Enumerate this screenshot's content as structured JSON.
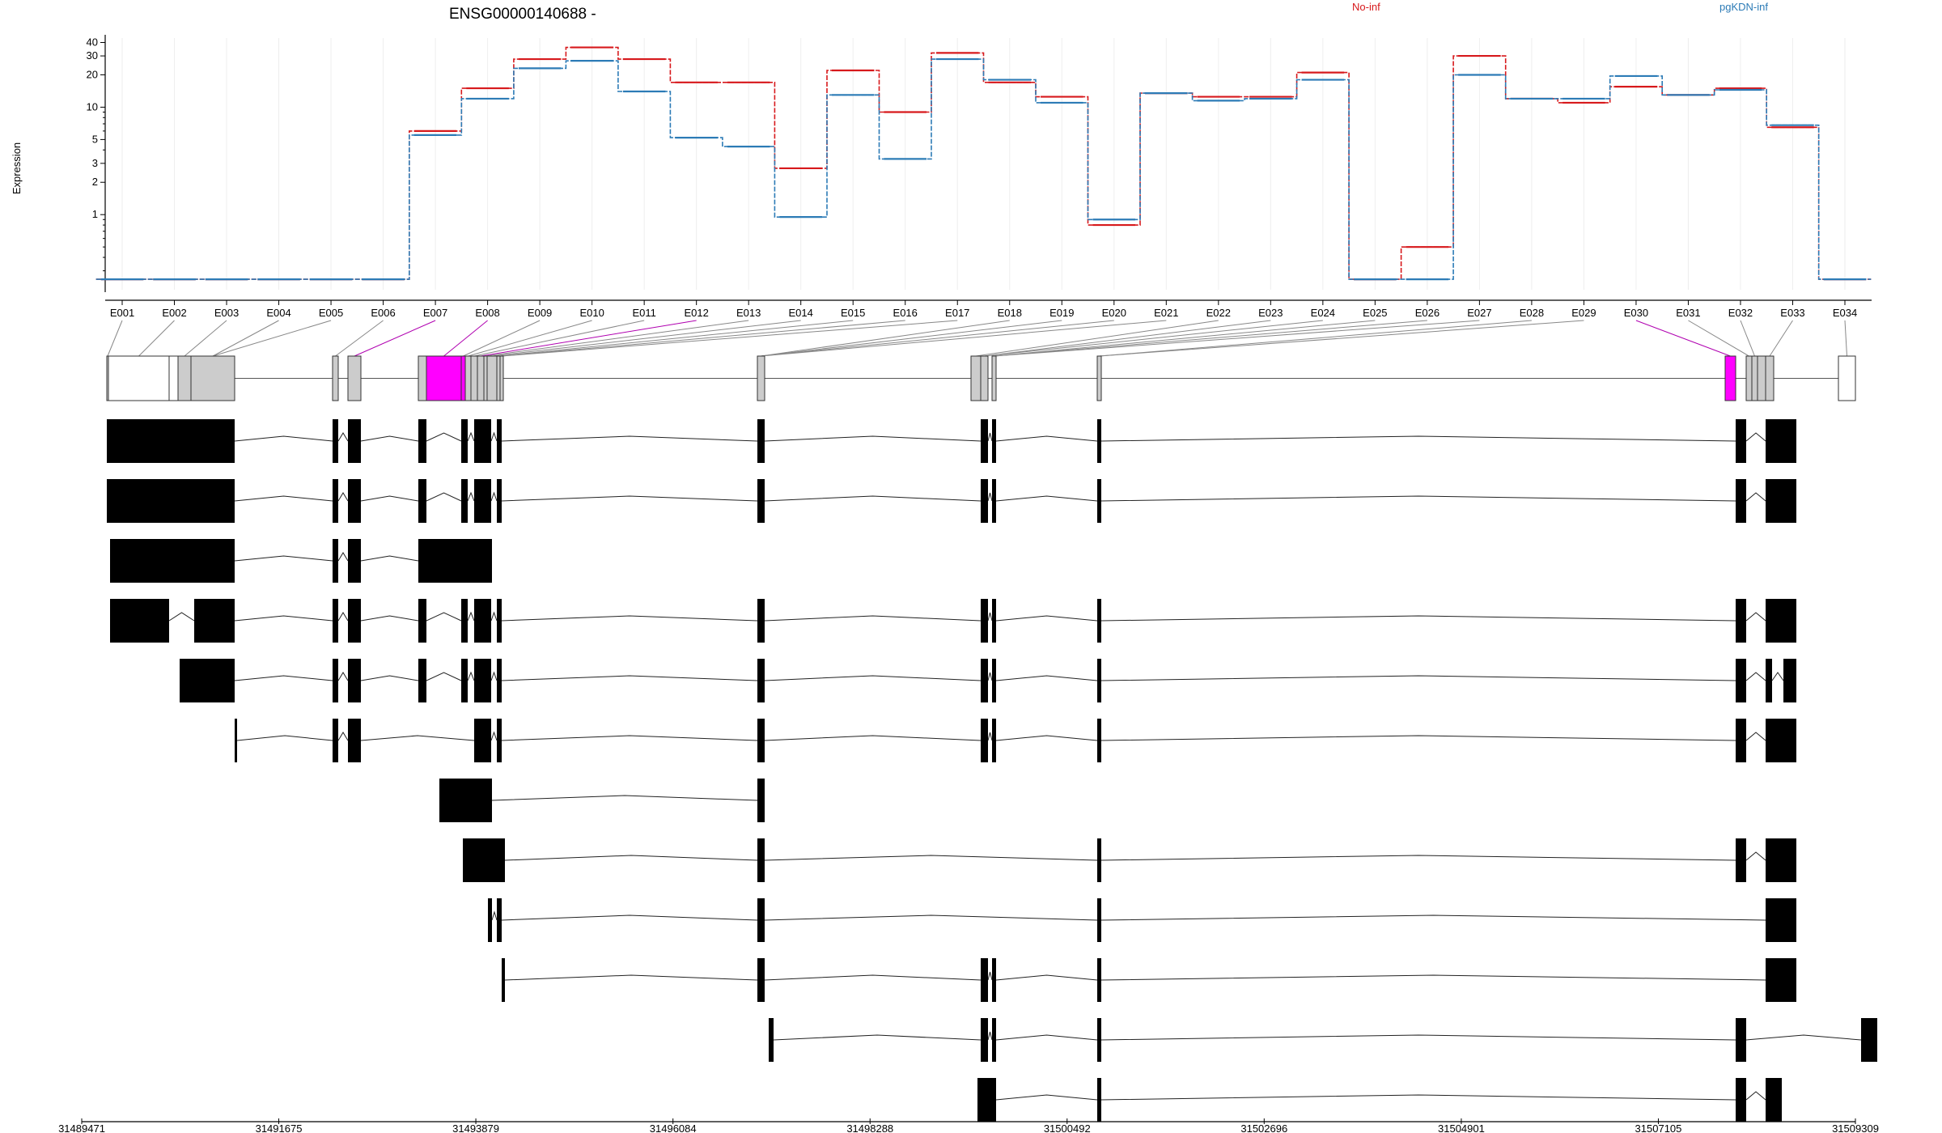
{
  "title": "ENSG00000140688 -",
  "ylabel": "Expression",
  "colors": {
    "No-inf": "#d7191c",
    "pgKDN-inf": "#2c7bb6",
    "highlight": "#ff00ff",
    "exon_fill": "#cccccc"
  },
  "chart_data": {
    "type": "line",
    "title": "ENSG00000140688 -",
    "ylabel": "Expression",
    "yscale": "log",
    "yticks": [
      1,
      2,
      3,
      5,
      10,
      20,
      30,
      40
    ],
    "grid": true,
    "legend_position": "top-right",
    "categories": [
      "E001",
      "E002",
      "E003",
      "E004",
      "E005",
      "E006",
      "E007",
      "E008",
      "E009",
      "E010",
      "E011",
      "E012",
      "E013",
      "E014",
      "E015",
      "E016",
      "E017",
      "E018",
      "E019",
      "E020",
      "E021",
      "E022",
      "E023",
      "E024",
      "E025",
      "E026",
      "E027",
      "E028",
      "E029",
      "E030",
      "E031",
      "E032",
      "E033",
      "E034"
    ],
    "series": [
      {
        "name": "No-inf",
        "color": "#d7191c",
        "values": [
          0.25,
          0.25,
          0.25,
          0.25,
          0.25,
          0.25,
          6,
          15,
          28,
          36,
          28,
          17,
          17,
          2.7,
          22,
          9,
          32,
          17,
          12.5,
          0.8,
          13.5,
          12.5,
          12.5,
          21,
          0.25,
          0.5,
          30,
          12,
          11,
          15.5,
          13,
          15,
          6.5,
          0.25
        ]
      },
      {
        "name": "pgKDN-inf",
        "color": "#2c7bb6",
        "values": [
          0.25,
          0.25,
          0.25,
          0.25,
          0.25,
          0.25,
          5.5,
          12,
          23,
          27,
          14,
          5.2,
          4.3,
          0.95,
          13,
          3.3,
          28,
          18,
          11,
          0.9,
          13.5,
          11.5,
          12,
          18,
          0.25,
          0.25,
          20,
          12,
          12,
          19.5,
          13,
          14.5,
          6.8,
          0.25
        ]
      }
    ],
    "x_positions": [
      31489471,
      31491675,
      31493879,
      31496084,
      31498288,
      31500492,
      31502696,
      31504901,
      31507105,
      31509309
    ],
    "x_tick_labels": [
      "31489471",
      "31491675",
      "31493879",
      "31496084",
      "31498288",
      "31500492",
      "31502696",
      "31504901",
      "31507105",
      "31509309"
    ],
    "highlighted_exons": [
      "E007",
      "E030"
    ],
    "transcript_count": 12
  }
}
